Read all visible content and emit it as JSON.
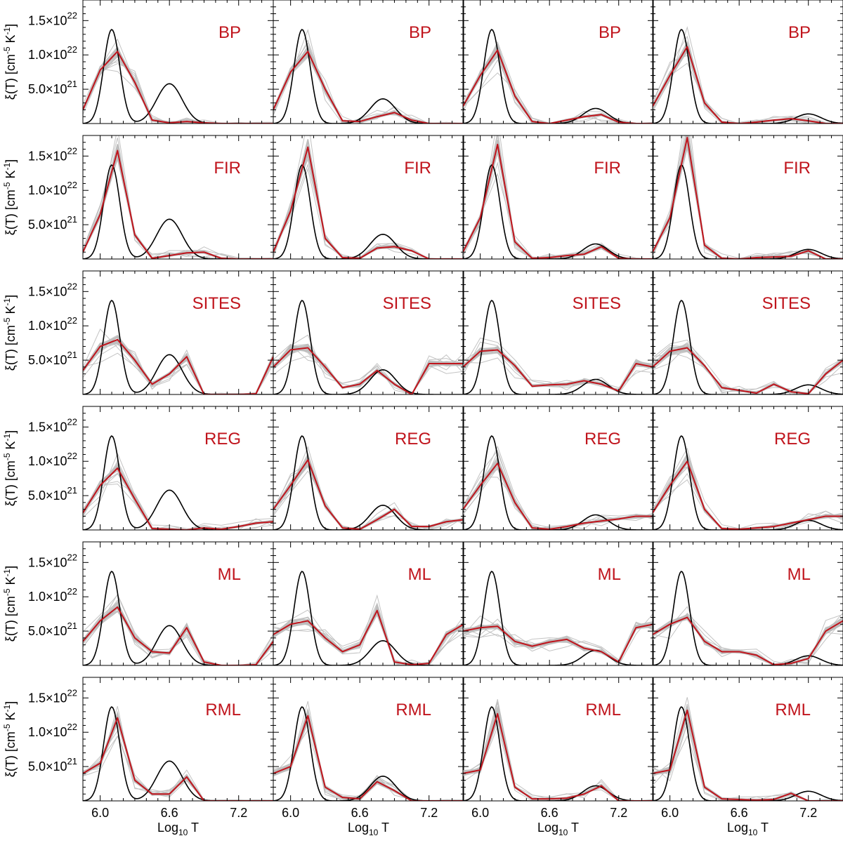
{
  "chart_data": {
    "type": "line",
    "xlabel": "Log10 T",
    "xlabel_main": "Log",
    "xlabel_sub": "10",
    "xlabel_tail": " T",
    "ylabel": "ξ(T) [cm-5 K-1]",
    "ylabel_main": "ξ(T) [cm",
    "ylabel_sup1": "-5",
    "ylabel_mid": " K",
    "ylabel_sup2": "-1",
    "ylabel_tail": "]",
    "xlim": [
      5.85,
      7.5
    ],
    "ylim": [
      0,
      1.8e+22
    ],
    "xticks": [
      {
        "value": 6.0,
        "label": "6.0"
      },
      {
        "value": 6.6,
        "label": "6.6"
      },
      {
        "value": 7.2,
        "label": "7.2"
      }
    ],
    "yticks": [
      {
        "value": 5e+21,
        "mantissa": "5.0×10",
        "exponent": "21"
      },
      {
        "value": 1e+22,
        "mantissa": "1.0×10",
        "exponent": "22"
      },
      {
        "value": 1.5e+22,
        "mantissa": "1.5×10",
        "exponent": "22"
      }
    ],
    "bin_centers": [
      5.85,
      6.0,
      6.15,
      6.3,
      6.45,
      6.6,
      6.75,
      6.9,
      7.05,
      7.2,
      7.35,
      7.5
    ],
    "methods": [
      "BP",
      "FIR",
      "SITES",
      "REG",
      "ML",
      "RML"
    ],
    "model": {
      "description": "true DEM: two Gaussian components in log T",
      "peak1": {
        "center": 6.1,
        "sigma": 0.07,
        "amplitude": 1.37e+22
      },
      "peak2_per_column": [
        {
          "center": 6.6,
          "sigma": 0.11,
          "amplitude": 5.8e+21
        },
        {
          "center": 6.8,
          "sigma": 0.11,
          "amplitude": 3.6e+21
        },
        {
          "center": 7.0,
          "sigma": 0.11,
          "amplitude": 2.2e+21
        },
        {
          "center": 7.2,
          "sigma": 0.11,
          "amplitude": 1.4e+21
        }
      ]
    },
    "series": {
      "BP": [
        [
          2e+21,
          7.8e+21,
          1.05e+22,
          6e+21,
          5e+20,
          1e+20,
          3e+20,
          1e+20,
          0,
          0,
          0,
          0
        ],
        [
          2e+21,
          7.5e+21,
          1.05e+22,
          5e+21,
          4e+20,
          3e+20,
          1e+21,
          1.6e+21,
          5e+20,
          0,
          0,
          0
        ],
        [
          2.5e+21,
          7e+21,
          1.07e+22,
          4e+21,
          3e+20,
          0,
          5e+20,
          1e+21,
          1.3e+21,
          2e+20,
          0,
          0
        ],
        [
          2.5e+21,
          7e+21,
          1.12e+22,
          3e+21,
          2e+20,
          0,
          2e+20,
          5e+20,
          7e+20,
          4e+20,
          0,
          0
        ]
      ],
      "FIR": [
        [
          1e+21,
          6.5e+21,
          1.58e+22,
          3.5e+21,
          1e+20,
          5e+20,
          9e+20,
          1e+21,
          1e+20,
          0,
          0,
          0
        ],
        [
          1e+21,
          7e+21,
          1.63e+22,
          3e+21,
          2e+20,
          1e+20,
          1.6e+21,
          1.8e+21,
          1.2e+21,
          0,
          0,
          0
        ],
        [
          1e+21,
          6e+21,
          1.67e+22,
          2.5e+21,
          1e+20,
          2e+20,
          5e+20,
          7e+20,
          1.8e+21,
          1e+20,
          0,
          0
        ],
        [
          1e+21,
          6e+21,
          1.77e+22,
          2e+21,
          1e+20,
          0,
          2e+20,
          3e+20,
          4e+20,
          1.2e+21,
          0,
          0
        ]
      ],
      "SITES": [
        [
          3.5e+21,
          7e+21,
          8e+21,
          5e+21,
          1.5e+21,
          3e+21,
          5.5e+21,
          0,
          0,
          0,
          1e+20,
          5.5e+21
        ],
        [
          4e+21,
          6.5e+21,
          6.8e+21,
          4e+21,
          1e+21,
          1.5e+21,
          3.5e+21,
          1.5e+21,
          0,
          4.5e+21,
          4.5e+21,
          4.5e+21
        ],
        [
          4e+21,
          6.3e+21,
          6.5e+21,
          4.2e+21,
          1.2e+21,
          1.4e+21,
          1.5e+21,
          2e+21,
          1.5e+21,
          5e+20,
          4.5e+21,
          4e+21
        ],
        [
          4e+21,
          6.3e+21,
          6.8e+21,
          4.2e+21,
          1e+21,
          6e+20,
          2e+20,
          1.5e+21,
          4e+20,
          1e+20,
          3e+21,
          5e+21
        ]
      ],
      "REG": [
        [
          2.5e+21,
          6.5e+21,
          9e+21,
          4.5e+21,
          2e+20,
          1e+20,
          0,
          3e+20,
          1e+20,
          5e+20,
          1e+21,
          1.2e+21
        ],
        [
          3e+21,
          6.5e+21,
          1.02e+22,
          3.5e+21,
          3e+20,
          1e+20,
          1.5e+21,
          3e+21,
          5e+20,
          5e+20,
          1.2e+21,
          1.5e+21
        ],
        [
          3e+21,
          6.5e+21,
          9.7e+21,
          4e+21,
          3e+20,
          1e+20,
          5e+20,
          1e+21,
          1.3e+21,
          1.6e+21,
          2e+21,
          2e+21
        ],
        [
          2.5e+21,
          6.5e+21,
          1e+22,
          3e+21,
          2e+20,
          1e+20,
          3e+20,
          5e+20,
          1e+21,
          1.5e+21,
          2e+21,
          2e+21
        ]
      ],
      "ML": [
        [
          3.5e+21,
          6.5e+21,
          8.5e+21,
          4e+21,
          2e+21,
          1.8e+21,
          5.5e+21,
          5e+20,
          0,
          0,
          1e+20,
          3.5e+21
        ],
        [
          4.5e+21,
          6e+21,
          6.5e+21,
          4e+21,
          2e+21,
          3e+21,
          8e+21,
          5e+20,
          1e+20,
          3e+20,
          4.5e+21,
          6e+21
        ],
        [
          5e+21,
          5.5e+21,
          5.7e+21,
          3.5e+21,
          2.8e+21,
          3.4e+21,
          3.8e+21,
          2.5e+21,
          2e+21,
          5e+20,
          5.5e+21,
          6e+21
        ],
        [
          4.5e+21,
          6e+21,
          7e+21,
          3.5e+21,
          2e+21,
          2e+21,
          1.5e+21,
          1e+20,
          3e+20,
          1e+21,
          5e+21,
          6.5e+21
        ]
      ],
      "RML": [
        [
          4e+21,
          5.5e+21,
          1.21e+22,
          3e+21,
          1e+21,
          1e+21,
          3.5e+21,
          0,
          0,
          0,
          0,
          0
        ],
        [
          4e+21,
          5e+21,
          1.24e+22,
          2e+21,
          5e+20,
          3e+20,
          2.8e+21,
          1.5e+21,
          0,
          0,
          0,
          0
        ],
        [
          4e+21,
          4.5e+21,
          1.27e+22,
          2e+21,
          3e+20,
          3e+20,
          4e+20,
          1e+21,
          2.2e+21,
          0,
          0,
          0
        ],
        [
          4e+21,
          4.5e+21,
          1.32e+22,
          2e+21,
          3e+20,
          2e+20,
          1e+20,
          2e+20,
          1.1e+21,
          0,
          0,
          0
        ]
      ]
    },
    "colors": {
      "model": "#000000",
      "estimate": "#c0141c",
      "realizations": "#bdbdbd"
    }
  }
}
